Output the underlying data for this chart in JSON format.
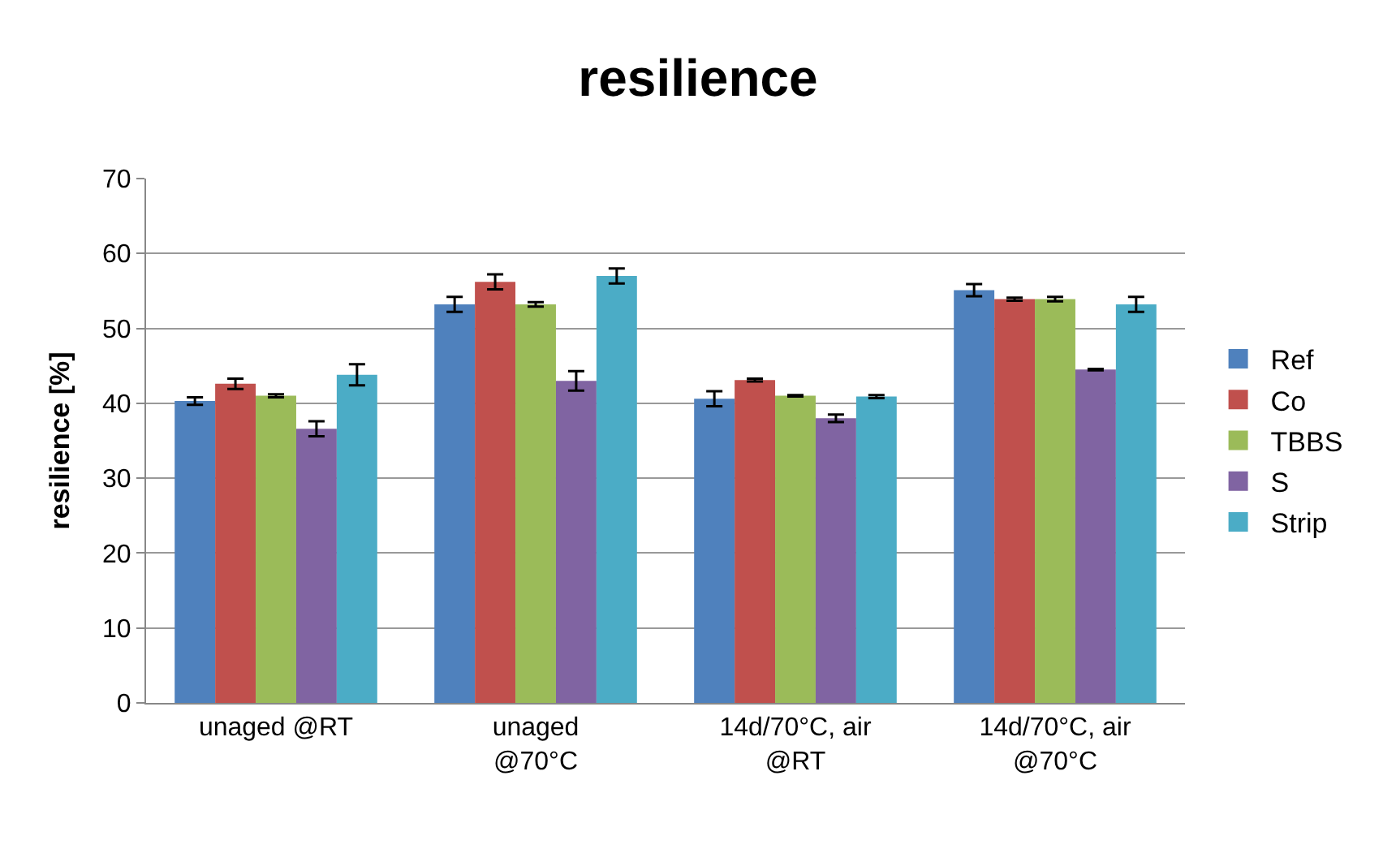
{
  "chart_data": {
    "type": "bar",
    "title": "resilience",
    "ylabel": "resilience [%]",
    "categories": [
      "unaged @RT",
      "unaged\n@70°C",
      "14d/70°C, air\n@RT",
      "14d/70°C, air\n@70°C"
    ],
    "series": [
      {
        "name": "Ref",
        "color": "#4f81bd",
        "values": [
          40.3,
          53.2,
          40.6,
          55.1
        ],
        "errors": [
          0.5,
          1,
          1,
          0.8
        ]
      },
      {
        "name": "Co",
        "color": "#c0504d",
        "values": [
          42.6,
          56.2,
          43.1,
          53.9
        ],
        "errors": [
          0.7,
          1,
          0.2,
          0.2
        ]
      },
      {
        "name": "TBBS",
        "color": "#9bbb59",
        "values": [
          41,
          53.2,
          41,
          53.9
        ],
        "errors": [
          0.2,
          0.3,
          0.1,
          0.3
        ]
      },
      {
        "name": "S",
        "color": "#8064a2",
        "values": [
          36.6,
          43,
          38,
          44.5
        ],
        "errors": [
          1,
          1.3,
          0.5,
          0.1
        ]
      },
      {
        "name": "Strip",
        "color": "#4bacc6",
        "values": [
          43.8,
          57,
          40.9,
          53.2
        ],
        "errors": [
          1.4,
          1,
          0.2,
          1
        ]
      }
    ],
    "ylim": [
      0,
      70
    ],
    "yticks": [
      0,
      10,
      20,
      30,
      40,
      50,
      60,
      70
    ],
    "grid": "y",
    "legend": "right"
  }
}
